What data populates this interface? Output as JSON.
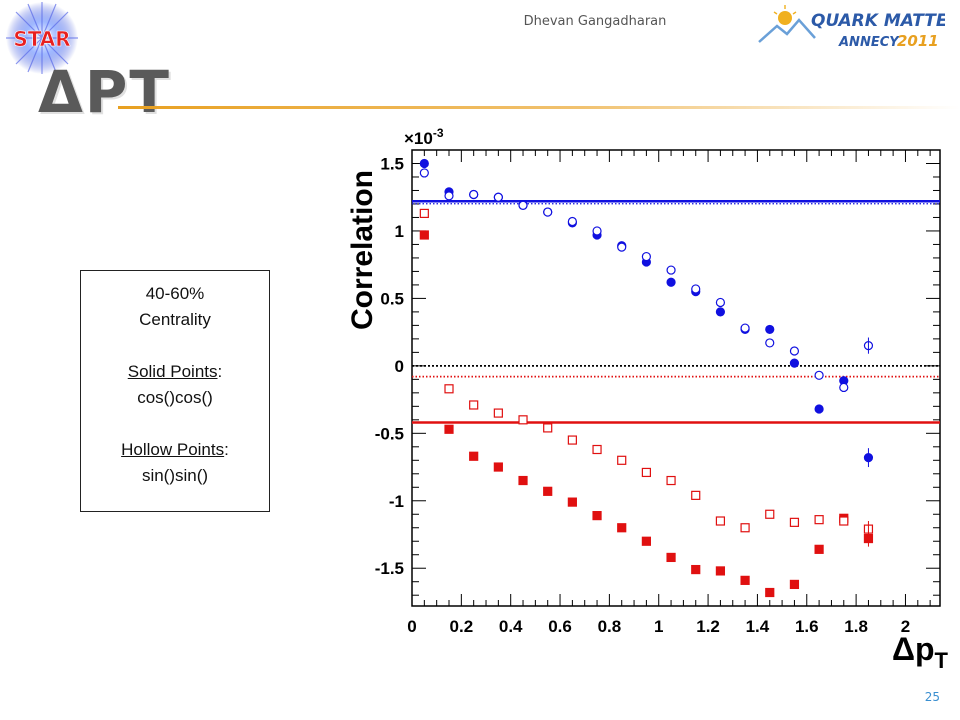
{
  "header": {
    "author": "Dhevan Gangadharan",
    "star_logo_text": "STAR",
    "conference_logo_line1": "QUARK MATTER",
    "conference_logo_line2": "ANNECY",
    "conference_logo_year": "2011"
  },
  "title": "ΔPT",
  "info_box": {
    "line1": "40-60%",
    "line2": "Centrality",
    "solid_label": "Solid Points",
    "solid_suffix": ":",
    "solid_value": "cos()cos()",
    "hollow_label": "Hollow Points",
    "hollow_suffix": ":",
    "hollow_value": "sin()sin()"
  },
  "page_number": "25",
  "colors": {
    "blue": "#1010e0",
    "red": "#e01010",
    "accent": "#e8a020",
    "page_number": "#3a8fd0"
  },
  "chart_data": {
    "type": "scatter",
    "ylabel": "Correlation",
    "y_multiplier": "×10",
    "y_multiplier_exp": "-3",
    "xlabel_main": "Δp",
    "xlabel_sub": "T",
    "xlim": [
      0,
      2.14
    ],
    "ylim": [
      -1.78,
      1.6
    ],
    "x_ticks": [
      0,
      0.2,
      0.4,
      0.6,
      0.8,
      1,
      1.2,
      1.4,
      1.6,
      1.8,
      2
    ],
    "x_tick_labels": [
      "0",
      "0.2",
      "0.4",
      "0.6",
      "0.8",
      "1",
      "1.2",
      "1.4",
      "1.6",
      "1.8",
      "2"
    ],
    "y_ticks": [
      1.5,
      1,
      0.5,
      0,
      -0.5,
      -1,
      -1.5
    ],
    "y_tick_labels": [
      "1.5",
      "1",
      "0.5",
      "0",
      "-0.5",
      "-1",
      "-1.5"
    ],
    "reference_lines": [
      {
        "y": 1.22,
        "color": "#1010e0",
        "style": "solid"
      },
      {
        "y": 0.0,
        "color": "#000000",
        "style": "dotted"
      },
      {
        "y": -0.08,
        "color": "#e01010",
        "style": "dotted"
      },
      {
        "y": -0.42,
        "color": "#e01010",
        "style": "solid"
      }
    ],
    "series": [
      {
        "marker": "circle",
        "filled": true,
        "color": "#1010e0",
        "x": [
          0.05,
          0.15,
          0.25,
          0.35,
          0.45,
          0.55,
          0.65,
          0.75,
          0.85,
          0.95,
          1.05,
          1.15,
          1.25,
          1.35,
          1.45,
          1.55,
          1.65,
          1.75,
          1.85
        ],
        "y": [
          1.5,
          1.29,
          1.27,
          1.25,
          1.19,
          1.14,
          1.06,
          0.97,
          0.89,
          0.77,
          0.62,
          0.55,
          0.4,
          0.27,
          0.27,
          0.02,
          -0.32,
          -0.11,
          -0.68
        ]
      },
      {
        "marker": "circle",
        "filled": false,
        "color": "#1010e0",
        "x": [
          0.05,
          0.15,
          0.25,
          0.35,
          0.45,
          0.55,
          0.65,
          0.75,
          0.85,
          0.95,
          1.05,
          1.15,
          1.25,
          1.35,
          1.45,
          1.55,
          1.65,
          1.75,
          1.85
        ],
        "y": [
          1.43,
          1.26,
          1.27,
          1.25,
          1.19,
          1.14,
          1.07,
          1.0,
          0.88,
          0.81,
          0.71,
          0.57,
          0.47,
          0.28,
          0.17,
          0.11,
          -0.07,
          -0.16,
          0.15
        ]
      },
      {
        "marker": "square",
        "filled": true,
        "color": "#e01010",
        "x": [
          0.05,
          0.15,
          0.25,
          0.35,
          0.45,
          0.55,
          0.65,
          0.75,
          0.85,
          0.95,
          1.05,
          1.15,
          1.25,
          1.35,
          1.45,
          1.55,
          1.65,
          1.75,
          1.85
        ],
        "y": [
          0.97,
          -0.47,
          -0.67,
          -0.75,
          -0.85,
          -0.93,
          -1.01,
          -1.11,
          -1.2,
          -1.3,
          -1.42,
          -1.51,
          -1.52,
          -1.59,
          -1.68,
          -1.62,
          -1.36,
          -1.13,
          -1.28
        ]
      },
      {
        "marker": "square",
        "filled": false,
        "color": "#e01010",
        "x": [
          0.05,
          0.15,
          0.25,
          0.35,
          0.45,
          0.55,
          0.65,
          0.75,
          0.85,
          0.95,
          1.05,
          1.15,
          1.25,
          1.35,
          1.45,
          1.55,
          1.65,
          1.75,
          1.85
        ],
        "y": [
          1.13,
          -0.17,
          -0.29,
          -0.35,
          -0.4,
          -0.46,
          -0.55,
          -0.62,
          -0.7,
          -0.79,
          -0.85,
          -0.96,
          -1.15,
          -1.2,
          -1.1,
          -1.16,
          -1.14,
          -1.15,
          -1.21
        ]
      }
    ]
  }
}
